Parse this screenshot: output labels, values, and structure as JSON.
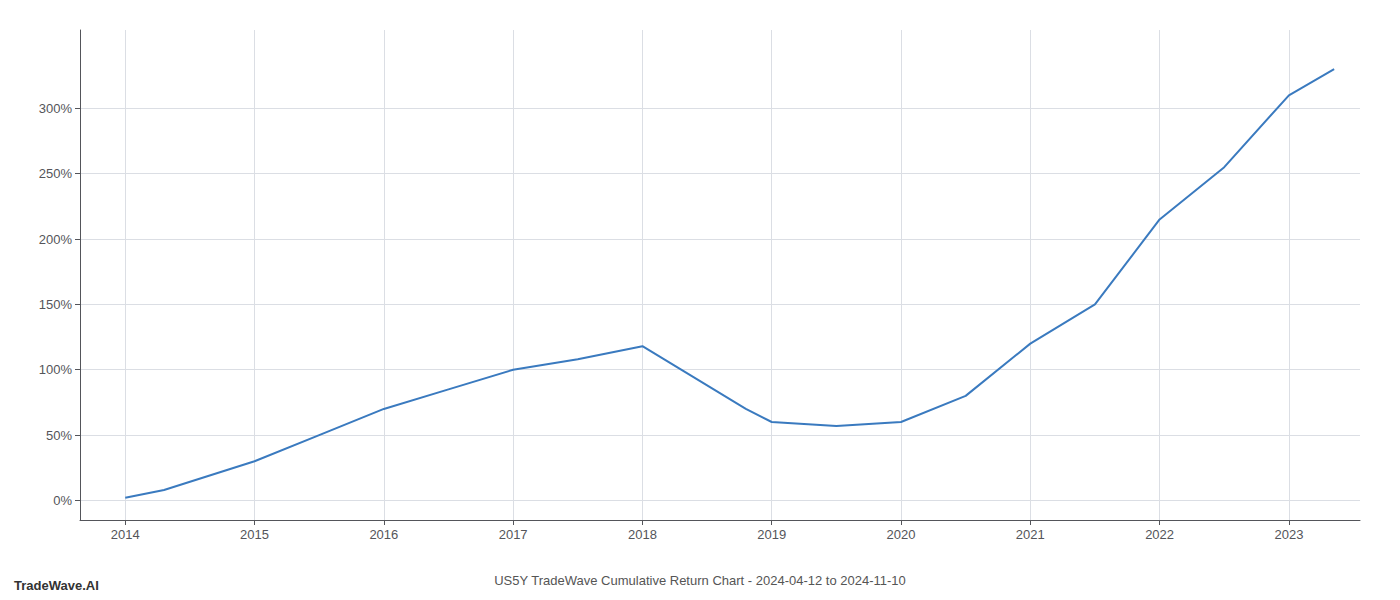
{
  "chart_data": {
    "type": "line",
    "title": "US5Y TradeWave Cumulative Return Chart - 2024-04-12 to 2024-11-10",
    "annotations": [
      "TradeWave.AI"
    ],
    "x": [
      2014.0,
      2014.3,
      2015.0,
      2015.5,
      2016.0,
      2016.5,
      2017.0,
      2017.5,
      2018.0,
      2018.8,
      2019.0,
      2019.5,
      2020.0,
      2020.5,
      2021.0,
      2021.5,
      2022.0,
      2022.5,
      2023.0,
      2023.35
    ],
    "values": [
      2,
      8,
      30,
      50,
      70,
      85,
      100,
      108,
      118,
      70,
      60,
      57,
      60,
      80,
      120,
      150,
      215,
      255,
      310,
      330
    ],
    "color": "#3a7abf",
    "xlim": [
      2013.65,
      2023.55
    ],
    "xticks": [
      2014,
      2015,
      2016,
      2017,
      2018,
      2019,
      2020,
      2021,
      2022,
      2023
    ],
    "ylim": [
      -15,
      360
    ],
    "yticks": [
      {
        "value": 0,
        "label": "0%"
      },
      {
        "value": 50,
        "label": "50%"
      },
      {
        "value": 100,
        "label": "100%"
      },
      {
        "value": 150,
        "label": "150%"
      },
      {
        "value": 200,
        "label": "200%"
      },
      {
        "value": 250,
        "label": "250%"
      },
      {
        "value": 300,
        "label": "300%"
      }
    ],
    "grid": true
  }
}
